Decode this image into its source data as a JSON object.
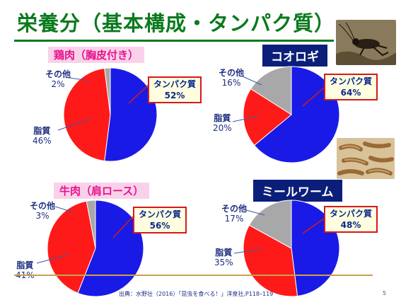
{
  "slide": {
    "title": "栄養分（基本構成・タンパク質）",
    "source": "出典：水野壮（2016）「昆虫を食べる！」洋泉社,P118–119",
    "page_number": "5"
  },
  "colors": {
    "protein": "#1a1ae6",
    "fat": "#ff1a1a",
    "other": "#a8a8a8",
    "title_green": "#0a7a1e"
  },
  "charts": [
    {
      "name": "鶏肉（胸皮付き）",
      "protein_label": "タンパク質",
      "protein_pct": "52%",
      "fat_label": "脂質",
      "fat_pct": "46%",
      "other_label": "その他",
      "other_pct": "2%"
    },
    {
      "name": "コオロギ",
      "protein_label": "タンパク質",
      "protein_pct": "64%",
      "fat_label": "脂質",
      "fat_pct": "20%",
      "other_label": "その他",
      "other_pct": "16%"
    },
    {
      "name": "牛肉（肩ロース）",
      "protein_label": "タンパク質",
      "protein_pct": "56%",
      "fat_label": "脂質",
      "fat_pct": "41%",
      "other_label": "その他",
      "other_pct": "3%"
    },
    {
      "name": "ミールワーム",
      "protein_label": "タンパク質",
      "protein_pct": "48%",
      "fat_label": "脂質",
      "fat_pct": "35%",
      "other_label": "その他",
      "other_pct": "17%"
    }
  ],
  "chart_data": [
    {
      "type": "pie",
      "title": "鶏肉（胸皮付き）",
      "categories": [
        "タンパク質",
        "脂質",
        "その他"
      ],
      "values": [
        52,
        46,
        2
      ]
    },
    {
      "type": "pie",
      "title": "コオロギ",
      "categories": [
        "タンパク質",
        "脂質",
        "その他"
      ],
      "values": [
        64,
        20,
        16
      ]
    },
    {
      "type": "pie",
      "title": "牛肉（肩ロース）",
      "categories": [
        "タンパク質",
        "脂質",
        "その他"
      ],
      "values": [
        56,
        41,
        3
      ]
    },
    {
      "type": "pie",
      "title": "ミールワーム",
      "categories": [
        "タンパク質",
        "脂質",
        "その他"
      ],
      "values": [
        48,
        35,
        17
      ]
    }
  ]
}
